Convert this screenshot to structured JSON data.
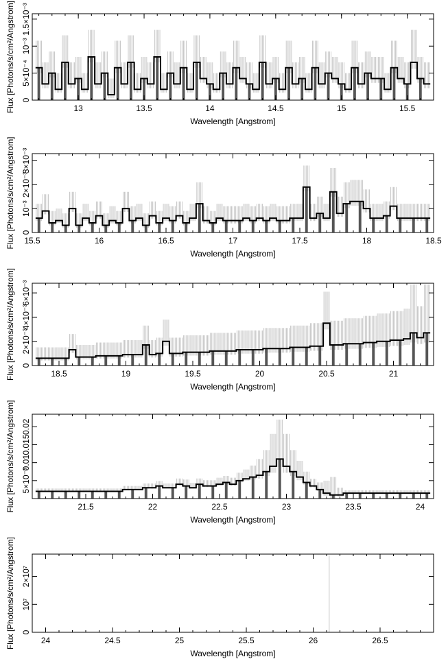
{
  "chart_data": [
    {
      "type": "line",
      "xlabel": "Wavelength [Angstrom]",
      "ylabel": "Flux [Photons/s/cm²/Angstrom]",
      "xlim": [
        12.65,
        15.7
      ],
      "ylim": [
        0,
        0.0016
      ],
      "xticks": [
        {
          "v": 13,
          "label": "13"
        },
        {
          "v": 13.5,
          "label": "13.5"
        },
        {
          "v": 14,
          "label": "14"
        },
        {
          "v": 14.5,
          "label": "14.5"
        },
        {
          "v": 15,
          "label": "15"
        },
        {
          "v": 15.5,
          "label": "15.5"
        }
      ],
      "yticks": [
        {
          "v": 0,
          "label": "0"
        },
        {
          "v": 0.0005,
          "label": "5×10⁻⁴"
        },
        {
          "v": 0.001,
          "label": "10⁻³"
        },
        {
          "v": 0.0015,
          "label": "1.5×10⁻³"
        }
      ],
      "series": [
        {
          "x": [
            12.7,
            12.75,
            12.8,
            12.85,
            12.9,
            12.95,
            13.0,
            13.05,
            13.1,
            13.15,
            13.2,
            13.25,
            13.3,
            13.35,
            13.4,
            13.45,
            13.5,
            13.55,
            13.6,
            13.65,
            13.7,
            13.75,
            13.8,
            13.85,
            13.9,
            13.95,
            14.0,
            14.05,
            14.1,
            14.15,
            14.2,
            14.25,
            14.3,
            14.35,
            14.4,
            14.45,
            14.5,
            14.55,
            14.6,
            14.65,
            14.7,
            14.75,
            14.8,
            14.85,
            14.9,
            14.95,
            15.0,
            15.05,
            15.1,
            15.15,
            15.2,
            15.25,
            15.3,
            15.35,
            15.4,
            15.45,
            15.5,
            15.55,
            15.6,
            15.65
          ],
          "y": [
            0.0006,
            0.0003,
            0.0005,
            0.0002,
            0.0007,
            0.0003,
            0.0004,
            0.0002,
            0.0008,
            0.0003,
            0.0005,
            0.0001,
            0.0006,
            0.0003,
            0.0007,
            0.0002,
            0.0004,
            0.0003,
            0.0008,
            0.0002,
            0.0005,
            0.0003,
            0.0006,
            0.0002,
            0.0007,
            0.0004,
            0.0003,
            0.0002,
            0.0005,
            0.0003,
            0.0006,
            0.0004,
            0.0003,
            0.0002,
            0.0007,
            0.0003,
            0.0004,
            0.0002,
            0.0006,
            0.0003,
            0.0004,
            0.0002,
            0.0006,
            0.0003,
            0.0005,
            0.0004,
            0.0003,
            0.0002,
            0.0006,
            0.0003,
            0.0005,
            0.0004,
            0.0004,
            0.0002,
            0.0006,
            0.0004,
            0.0003,
            0.0007,
            0.0004,
            0.0003
          ],
          "err": [
            0.0005,
            0.0004,
            0.0004,
            0.0003,
            0.0005,
            0.0004,
            0.0004,
            0.0003,
            0.0005,
            0.0004,
            0.0004,
            0.0003,
            0.0005,
            0.0004,
            0.0005,
            0.0003,
            0.0004,
            0.0004,
            0.0005,
            0.0003,
            0.0004,
            0.0004,
            0.0005,
            0.0003,
            0.0005,
            0.0004,
            0.0004,
            0.0003,
            0.0004,
            0.0004,
            0.0005,
            0.0004,
            0.0004,
            0.0003,
            0.0005,
            0.0004,
            0.0004,
            0.0003,
            0.0005,
            0.0004,
            0.0004,
            0.0003,
            0.0005,
            0.0004,
            0.0004,
            0.0004,
            0.0004,
            0.0003,
            0.0005,
            0.0004,
            0.0004,
            0.0004,
            0.0004,
            0.0003,
            0.0005,
            0.0004,
            0.0004,
            0.0006,
            0.0004,
            0.0004
          ]
        }
      ]
    },
    {
      "type": "line",
      "xlabel": "Wavelength [Angstrom]",
      "ylabel": "Flux [Photons/s/cm²/Angstrom]",
      "xlim": [
        15.5,
        18.5
      ],
      "ylim": [
        0,
        0.0033
      ],
      "xticks": [
        {
          "v": 15.5,
          "label": "15.5"
        },
        {
          "v": 16,
          "label": "16"
        },
        {
          "v": 16.5,
          "label": "16.5"
        },
        {
          "v": 17,
          "label": "17"
        },
        {
          "v": 17.5,
          "label": "17.5"
        },
        {
          "v": 18,
          "label": "18"
        },
        {
          "v": 18.5,
          "label": "18.5"
        }
      ],
      "yticks": [
        {
          "v": 0,
          "label": "0"
        },
        {
          "v": 0.001,
          "label": "10⁻³"
        },
        {
          "v": 0.002,
          "label": "2×10⁻³"
        },
        {
          "v": 0.003,
          "label": "3×10⁻³"
        }
      ],
      "series": [
        {
          "x": [
            15.55,
            15.6,
            15.65,
            15.7,
            15.75,
            15.8,
            15.85,
            15.9,
            15.95,
            16.0,
            16.05,
            16.1,
            16.15,
            16.2,
            16.25,
            16.3,
            16.35,
            16.4,
            16.45,
            16.5,
            16.55,
            16.6,
            16.65,
            16.7,
            16.75,
            16.8,
            16.85,
            16.9,
            16.95,
            17.0,
            17.05,
            17.1,
            17.15,
            17.2,
            17.25,
            17.3,
            17.35,
            17.4,
            17.45,
            17.5,
            17.55,
            17.6,
            17.65,
            17.7,
            17.75,
            17.8,
            17.85,
            17.9,
            17.95,
            18.0,
            18.05,
            18.1,
            18.15,
            18.2,
            18.25,
            18.3,
            18.35,
            18.4,
            18.45
          ],
          "y": [
            0.0006,
            0.0009,
            0.0004,
            0.0005,
            0.0003,
            0.001,
            0.0003,
            0.0006,
            0.0004,
            0.0007,
            0.0003,
            0.0005,
            0.0004,
            0.001,
            0.0005,
            0.0006,
            0.0003,
            0.0007,
            0.0004,
            0.0006,
            0.0005,
            0.0007,
            0.0004,
            0.0006,
            0.0012,
            0.0005,
            0.0004,
            0.0006,
            0.0005,
            0.0005,
            0.0005,
            0.0006,
            0.0005,
            0.0006,
            0.0005,
            0.0006,
            0.0005,
            0.0005,
            0.0006,
            0.0006,
            0.0019,
            0.0006,
            0.0008,
            0.0006,
            0.0017,
            0.0008,
            0.0012,
            0.0013,
            0.0013,
            0.001,
            0.0006,
            0.0006,
            0.0007,
            0.0011,
            0.0006,
            0.0006,
            0.0006,
            0.0006,
            0.0006
          ],
          "err": [
            0.0006,
            0.0007,
            0.0005,
            0.0005,
            0.0005,
            0.0007,
            0.0005,
            0.0006,
            0.0005,
            0.0006,
            0.0005,
            0.0006,
            0.0005,
            0.0007,
            0.0006,
            0.0006,
            0.0005,
            0.0006,
            0.0005,
            0.0006,
            0.0006,
            0.0006,
            0.0005,
            0.0006,
            0.0009,
            0.0006,
            0.0005,
            0.0006,
            0.0006,
            0.0006,
            0.0006,
            0.0006,
            0.0006,
            0.0006,
            0.0006,
            0.0006,
            0.0006,
            0.0006,
            0.0006,
            0.0006,
            0.0009,
            0.0006,
            0.0007,
            0.0006,
            0.001,
            0.0007,
            0.0009,
            0.0009,
            0.0009,
            0.0008,
            0.0006,
            0.0006,
            0.0006,
            0.0008,
            0.0006,
            0.0006,
            0.0006,
            0.0006,
            0.0006
          ]
        }
      ]
    },
    {
      "type": "line",
      "xlabel": "Wavelength [Angstrom]",
      "ylabel": "Flux [Photons/s/cm²/Angstrom]",
      "xlim": [
        18.3,
        21.3
      ],
      "ylim": [
        0,
        0.0068
      ],
      "xticks": [
        {
          "v": 18.5,
          "label": "18.5"
        },
        {
          "v": 19,
          "label": "19"
        },
        {
          "v": 19.5,
          "label": "19.5"
        },
        {
          "v": 20,
          "label": "20"
        },
        {
          "v": 20.5,
          "label": "20.5"
        },
        {
          "v": 21,
          "label": "21"
        }
      ],
      "yticks": [
        {
          "v": 0,
          "label": "0"
        },
        {
          "v": 0.002,
          "label": "2×10⁻³"
        },
        {
          "v": 0.004,
          "label": "4×10⁻³"
        },
        {
          "v": 0.006,
          "label": "6×10⁻³"
        }
      ],
      "series": [
        {
          "x": [
            18.35,
            18.4,
            18.45,
            18.5,
            18.55,
            18.6,
            18.65,
            18.7,
            18.75,
            18.8,
            18.85,
            18.9,
            18.95,
            19.0,
            19.05,
            19.1,
            19.15,
            19.2,
            19.25,
            19.3,
            19.35,
            19.4,
            19.45,
            19.5,
            19.55,
            19.6,
            19.65,
            19.7,
            19.75,
            19.8,
            19.85,
            19.9,
            19.95,
            20.0,
            20.05,
            20.1,
            20.15,
            20.2,
            20.25,
            20.3,
            20.35,
            20.4,
            20.45,
            20.5,
            20.55,
            20.6,
            20.65,
            20.7,
            20.75,
            20.8,
            20.85,
            20.9,
            20.95,
            21.0,
            21.05,
            21.1,
            21.15,
            21.2,
            21.25
          ],
          "y": [
            0.0006,
            0.0006,
            0.0006,
            0.0006,
            0.0006,
            0.0013,
            0.0007,
            0.0007,
            0.0007,
            0.0008,
            0.0008,
            0.0008,
            0.0008,
            0.0009,
            0.0009,
            0.0009,
            0.0017,
            0.0009,
            0.001,
            0.002,
            0.001,
            0.001,
            0.0011,
            0.0011,
            0.0011,
            0.0011,
            0.0012,
            0.0012,
            0.0012,
            0.0012,
            0.0013,
            0.0013,
            0.0013,
            0.0013,
            0.0014,
            0.0014,
            0.0014,
            0.0014,
            0.0015,
            0.0015,
            0.0015,
            0.0016,
            0.0016,
            0.0035,
            0.0017,
            0.0017,
            0.0018,
            0.0018,
            0.0018,
            0.0019,
            0.0019,
            0.002,
            0.002,
            0.0021,
            0.0021,
            0.0022,
            0.0027,
            0.0023,
            0.0027
          ],
          "err": [
            0.0009,
            0.0009,
            0.0009,
            0.0009,
            0.0009,
            0.0013,
            0.001,
            0.001,
            0.001,
            0.0011,
            0.0011,
            0.0011,
            0.0011,
            0.0012,
            0.0012,
            0.0012,
            0.0016,
            0.0012,
            0.0013,
            0.0018,
            0.0013,
            0.0013,
            0.0014,
            0.0014,
            0.0014,
            0.0014,
            0.0015,
            0.0015,
            0.0015,
            0.0015,
            0.0016,
            0.0016,
            0.0016,
            0.0016,
            0.0017,
            0.0017,
            0.0017,
            0.0017,
            0.0018,
            0.0018,
            0.0018,
            0.0019,
            0.0019,
            0.0026,
            0.002,
            0.002,
            0.0021,
            0.0021,
            0.0021,
            0.0022,
            0.0022,
            0.0023,
            0.0023,
            0.0024,
            0.0024,
            0.0025,
            0.004,
            0.0026,
            0.004
          ]
        }
      ]
    },
    {
      "type": "line",
      "xlabel": "Wavelength [Angstrom]",
      "ylabel": "Flux [Photons/s/cm²/Angstrom]",
      "xlim": [
        21.1,
        24.1
      ],
      "ylim": [
        0,
        0.0235
      ],
      "xticks": [
        {
          "v": 21.5,
          "label": "21.5"
        },
        {
          "v": 22,
          "label": "22"
        },
        {
          "v": 22.5,
          "label": "22.5"
        },
        {
          "v": 23,
          "label": "23"
        },
        {
          "v": 23.5,
          "label": "23.5"
        },
        {
          "v": 24,
          "label": "24"
        }
      ],
      "yticks": [
        {
          "v": 0.005,
          "label": "5×10⁻³"
        },
        {
          "v": 0.01,
          "label": "0.01"
        },
        {
          "v": 0.015,
          "label": "0.015"
        },
        {
          "v": 0.02,
          "label": "0.02"
        }
      ],
      "series": [
        {
          "x": [
            21.15,
            21.2,
            21.25,
            21.3,
            21.35,
            21.4,
            21.45,
            21.5,
            21.55,
            21.6,
            21.65,
            21.7,
            21.75,
            21.8,
            21.85,
            21.9,
            21.95,
            22.0,
            22.05,
            22.1,
            22.15,
            22.2,
            22.25,
            22.3,
            22.35,
            22.4,
            22.45,
            22.5,
            22.55,
            22.6,
            22.65,
            22.7,
            22.75,
            22.8,
            22.85,
            22.9,
            22.95,
            23.0,
            23.05,
            23.1,
            23.15,
            23.2,
            23.25,
            23.3,
            23.35,
            23.4,
            23.45,
            23.5,
            23.55,
            23.6,
            23.65,
            23.7,
            23.75,
            23.8,
            23.85,
            23.9,
            23.95,
            24.0,
            24.05
          ],
          "y": [
            0.002,
            0.002,
            0.002,
            0.002,
            0.002,
            0.002,
            0.002,
            0.002,
            0.002,
            0.002,
            0.002,
            0.002,
            0.002,
            0.0025,
            0.0025,
            0.0025,
            0.003,
            0.003,
            0.0035,
            0.003,
            0.003,
            0.004,
            0.0035,
            0.003,
            0.004,
            0.0035,
            0.0035,
            0.004,
            0.0045,
            0.004,
            0.005,
            0.0055,
            0.006,
            0.0065,
            0.0075,
            0.009,
            0.011,
            0.009,
            0.0075,
            0.006,
            0.0045,
            0.0035,
            0.0025,
            0.0015,
            0.001,
            0.001,
            0.0015,
            0.0015,
            0.0015,
            0.0015,
            0.0015,
            0.0015,
            0.0015,
            0.0015,
            0.0015,
            0.0015,
            0.0015,
            0.0015,
            0.0015
          ],
          "err": [
            0.0008,
            0.0008,
            0.0008,
            0.0008,
            0.0008,
            0.0008,
            0.0008,
            0.0008,
            0.0008,
            0.0008,
            0.0008,
            0.0008,
            0.0008,
            0.001,
            0.001,
            0.001,
            0.0012,
            0.0012,
            0.0014,
            0.0012,
            0.0012,
            0.0016,
            0.0018,
            0.0014,
            0.0016,
            0.0016,
            0.0016,
            0.0018,
            0.0018,
            0.0018,
            0.0022,
            0.0026,
            0.0032,
            0.0045,
            0.006,
            0.009,
            0.011,
            0.009,
            0.006,
            0.0045,
            0.003,
            0.002,
            0.002,
            0.0035,
            0.005,
            0.002,
            0.0008,
            0.0008,
            0.0008,
            0.0008,
            0.0008,
            0.0008,
            0.0008,
            0.0008,
            0.0008,
            0.0008,
            0.0008,
            0.0008,
            0.0008
          ]
        }
      ]
    },
    {
      "type": "line",
      "xlabel": "Wavelength [Angstrom]",
      "ylabel": "Flux [Photons/s/cm²/Angstrom]",
      "xlim": [
        23.9,
        26.9
      ],
      "ylim": [
        0,
        28000000
      ],
      "xticks": [
        {
          "v": 24,
          "label": "24"
        },
        {
          "v": 24.5,
          "label": "24.5"
        },
        {
          "v": 25,
          "label": "25"
        },
        {
          "v": 25.5,
          "label": "25.5"
        },
        {
          "v": 26,
          "label": "26"
        },
        {
          "v": 26.5,
          "label": "26.5"
        }
      ],
      "yticks": [
        {
          "v": 0,
          "label": "0"
        },
        {
          "v": 10000000,
          "label": "10⁷"
        },
        {
          "v": 20000000,
          "label": "2×10⁷"
        }
      ],
      "series": [
        {
          "x": [
            26.12
          ],
          "y": [
            0
          ],
          "err": [
            27500000
          ]
        }
      ]
    }
  ]
}
